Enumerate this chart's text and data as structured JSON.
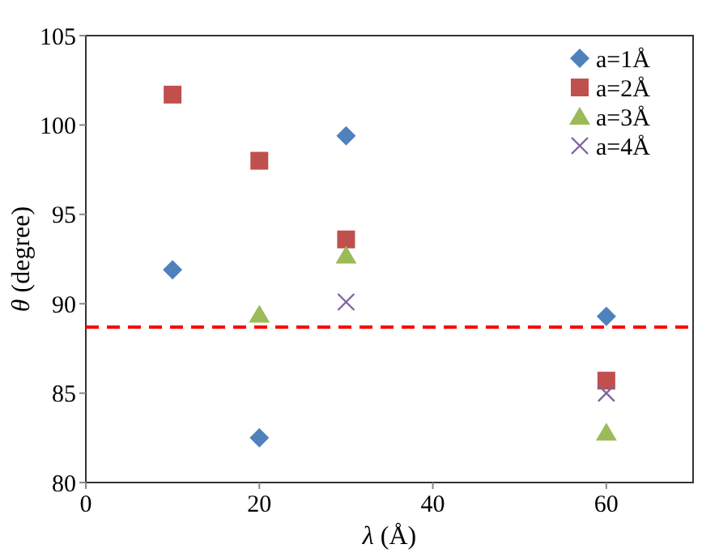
{
  "chart_data": {
    "type": "scatter",
    "xlabel": "λ (Å)",
    "ylabel": "θ (degree)",
    "xlim": [
      0,
      70
    ],
    "ylim": [
      80,
      105
    ],
    "xticks": [
      0,
      20,
      40,
      60
    ],
    "yticks": [
      80,
      85,
      90,
      95,
      100,
      105
    ],
    "grid": false,
    "legend": "top right",
    "series": [
      {
        "name": "a=1Å",
        "color": "#4f81bd",
        "marker": "diamond",
        "x": [
          10,
          20,
          30,
          60
        ],
        "values": [
          91.9,
          82.5,
          99.4,
          89.3
        ]
      },
      {
        "name": "a=2Å",
        "color": "#c0504d",
        "marker": "square",
        "x": [
          10,
          20,
          30,
          60
        ],
        "values": [
          101.7,
          98.0,
          93.6,
          85.7
        ]
      },
      {
        "name": "a=3Å",
        "color": "#9bbb59",
        "marker": "triangle",
        "x": [
          20,
          30,
          60
        ],
        "values": [
          89.4,
          92.7,
          82.8
        ]
      },
      {
        "name": "a=4Å",
        "color": "#8064a2",
        "marker": "cross",
        "x": [
          30,
          60
        ],
        "values": [
          90.1,
          85.0
        ]
      }
    ],
    "ref_lines": [
      {
        "axis": "y",
        "value": 88.7,
        "color": "#ff0000",
        "line_style": "dashed"
      }
    ]
  }
}
